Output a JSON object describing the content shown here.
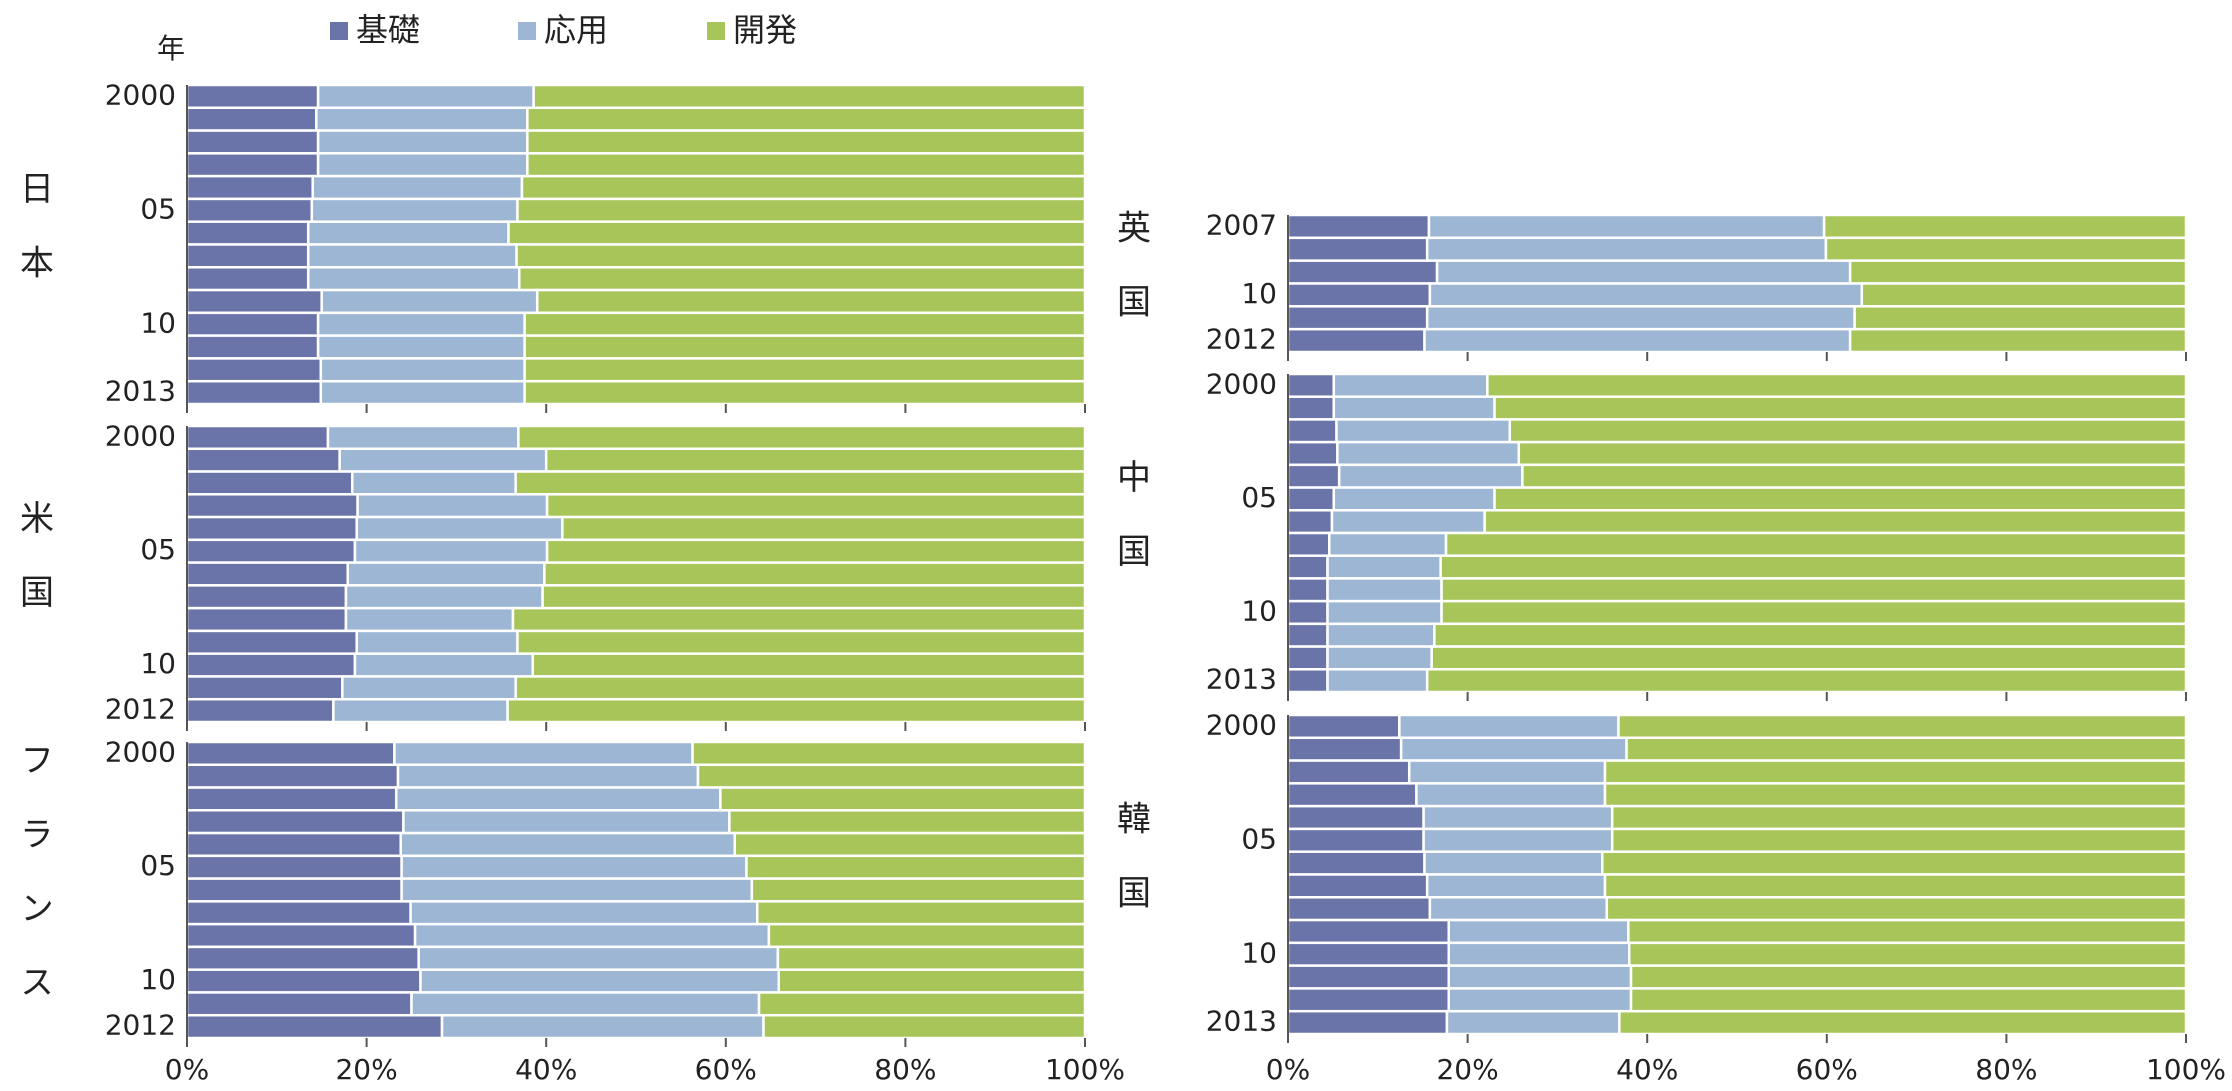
{
  "chart_data": {
    "type": "bar",
    "orientation": "horizontal",
    "stacking": "percent",
    "y_label": "年",
    "series": [
      {
        "name": "基礎",
        "color": "#6a74a8"
      },
      {
        "name": "応用",
        "color": "#9cb6d4"
      },
      {
        "name": "開発",
        "color": "#a8c55a"
      }
    ],
    "xlim": [
      0,
      100
    ],
    "xticks": [
      {
        "value": 0,
        "label": "0%"
      },
      {
        "value": 20,
        "label": "20%"
      },
      {
        "value": 40,
        "label": "40%"
      },
      {
        "value": 60,
        "label": "60%"
      },
      {
        "value": 80,
        "label": "80%"
      },
      {
        "value": 100,
        "label": "100%"
      }
    ],
    "panels": [
      {
        "label": "日本",
        "categories": [
          "2000",
          null,
          null,
          null,
          null,
          "05",
          null,
          null,
          null,
          null,
          "10",
          null,
          null,
          "2013"
        ],
        "values": [
          [
            14.6,
            14.4,
            14.6,
            14.6,
            14.0,
            13.9,
            13.5,
            13.5,
            13.5,
            15.0,
            14.6,
            14.6,
            14.9,
            14.9
          ],
          [
            24.0,
            23.5,
            23.3,
            23.3,
            23.3,
            22.9,
            22.3,
            23.2,
            23.5,
            24.0,
            23.0,
            23.0,
            22.7,
            22.7
          ],
          [
            61.4,
            62.1,
            62.1,
            62.1,
            62.7,
            63.2,
            64.2,
            63.3,
            63.0,
            61.0,
            62.4,
            62.4,
            62.4,
            62.4
          ]
        ]
      },
      {
        "label": "米国",
        "categories": [
          "2000",
          null,
          null,
          null,
          null,
          "05",
          null,
          null,
          null,
          null,
          "10",
          null,
          "2012"
        ],
        "values": [
          [
            15.7,
            17.0,
            18.4,
            19.0,
            18.9,
            18.7,
            17.9,
            17.7,
            17.7,
            18.9,
            18.7,
            17.3,
            16.3
          ],
          [
            21.2,
            23.0,
            18.2,
            21.1,
            22.9,
            21.4,
            21.9,
            21.9,
            18.6,
            17.9,
            19.8,
            19.3,
            19.4
          ],
          [
            63.1,
            60.0,
            63.4,
            59.9,
            58.2,
            59.9,
            60.2,
            60.4,
            63.7,
            63.2,
            61.5,
            63.4,
            64.3
          ]
        ]
      },
      {
        "label": "フランス",
        "categories": [
          "2000",
          null,
          null,
          null,
          null,
          "05",
          null,
          null,
          null,
          null,
          "10",
          null,
          "2012"
        ],
        "values": [
          [
            23.1,
            23.5,
            23.3,
            24.1,
            23.8,
            23.9,
            23.9,
            24.9,
            25.4,
            25.8,
            26.0,
            25.0,
            28.4
          ],
          [
            33.2,
            33.4,
            36.1,
            36.3,
            37.2,
            38.4,
            39.0,
            38.6,
            39.4,
            40.0,
            39.9,
            38.7,
            35.8
          ],
          [
            43.7,
            43.1,
            40.6,
            39.6,
            39.0,
            37.7,
            37.1,
            36.5,
            35.2,
            34.2,
            34.1,
            36.3,
            35.8
          ]
        ]
      },
      {
        "label": "英国",
        "categories": [
          "2007",
          null,
          null,
          "10",
          null,
          "2012"
        ],
        "values": [
          [
            15.7,
            15.5,
            16.6,
            15.8,
            15.5,
            15.2
          ],
          [
            44.0,
            44.4,
            46.0,
            48.1,
            47.6,
            47.4
          ],
          [
            40.3,
            40.1,
            37.4,
            36.1,
            36.9,
            37.4
          ]
        ]
      },
      {
        "label": "中国",
        "categories": [
          "2000",
          null,
          null,
          null,
          null,
          "05",
          null,
          null,
          null,
          null,
          "10",
          null,
          null,
          "2013"
        ],
        "values": [
          [
            5.1,
            5.1,
            5.4,
            5.5,
            5.7,
            5.1,
            4.9,
            4.6,
            4.4,
            4.4,
            4.4,
            4.4,
            4.4,
            4.4
          ],
          [
            17.1,
            17.9,
            19.3,
            20.2,
            20.4,
            17.9,
            17.0,
            13.0,
            12.6,
            12.7,
            12.7,
            11.9,
            11.6,
            11.1
          ],
          [
            77.8,
            77.0,
            75.3,
            74.3,
            73.9,
            77.0,
            78.1,
            82.4,
            83.0,
            82.9,
            82.9,
            83.7,
            84.0,
            84.5
          ]
        ]
      },
      {
        "label": "韓国",
        "categories": [
          "2000",
          null,
          null,
          null,
          null,
          "05",
          null,
          null,
          null,
          null,
          "10",
          null,
          null,
          "2013"
        ],
        "values": [
          [
            12.4,
            12.6,
            13.5,
            14.3,
            15.1,
            15.1,
            15.2,
            15.5,
            15.8,
            17.9,
            17.9,
            17.9,
            17.9,
            17.7
          ],
          [
            24.4,
            25.1,
            21.8,
            21.0,
            21.0,
            21.0,
            19.8,
            19.8,
            19.7,
            20.0,
            20.1,
            20.3,
            20.3,
            19.2
          ],
          [
            63.2,
            62.3,
            64.7,
            64.7,
            63.9,
            63.9,
            65.0,
            64.7,
            64.5,
            62.1,
            62.0,
            61.8,
            61.8,
            63.1
          ]
        ]
      }
    ]
  }
}
